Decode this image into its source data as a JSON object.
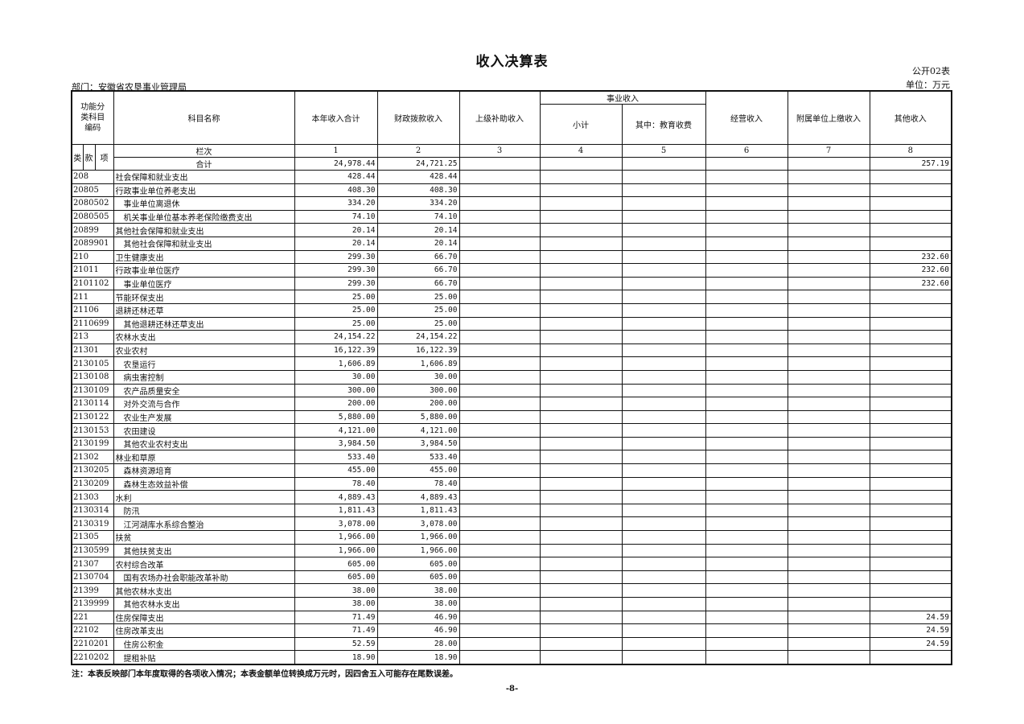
{
  "title": "收入决算表",
  "form_no": "公开02表",
  "unit": "单位：万元",
  "department": "部门：安徽省农垦事业管理局",
  "headers": {
    "code": "功能分类科目编码",
    "lei": "类",
    "kuan": "款",
    "xiang": "项",
    "name": "科目名称",
    "c1": "本年收入合计",
    "c2": "财政拨款收入",
    "c3": "上级补助收入",
    "shiye": "事业收入",
    "c4": "小计",
    "c5": "其中：教育收费",
    "c6": "经营收入",
    "c7": "附属单位上缴收入",
    "c8": "其他收入",
    "lanci": "栏次",
    "nums": [
      "1",
      "2",
      "3",
      "4",
      "5",
      "6",
      "7",
      "8"
    ]
  },
  "total": {
    "label": "合计",
    "c1": "24,978.44",
    "c2": "24,721.25",
    "c8": "257.19"
  },
  "rows": [
    {
      "code": "208",
      "name": "社会保障和就业支出",
      "level": 1,
      "c1": "428.44",
      "c2": "428.44",
      "c8": ""
    },
    {
      "code": "20805",
      "name": "行政事业单位养老支出",
      "level": 1,
      "c1": "408.30",
      "c2": "408.30",
      "c8": ""
    },
    {
      "code": "2080502",
      "name": "事业单位离退休",
      "level": 2,
      "c1": "334.20",
      "c2": "334.20",
      "c8": ""
    },
    {
      "code": "2080505",
      "name": "机关事业单位基本养老保险缴费支出",
      "level": 2,
      "c1": "74.10",
      "c2": "74.10",
      "c8": ""
    },
    {
      "code": "20899",
      "name": "其他社会保障和就业支出",
      "level": 1,
      "c1": "20.14",
      "c2": "20.14",
      "c8": ""
    },
    {
      "code": "2089901",
      "name": "其他社会保障和就业支出",
      "level": 2,
      "c1": "20.14",
      "c2": "20.14",
      "c8": ""
    },
    {
      "code": "210",
      "name": "卫生健康支出",
      "level": 1,
      "c1": "299.30",
      "c2": "66.70",
      "c8": "232.60"
    },
    {
      "code": "21011",
      "name": "行政事业单位医疗",
      "level": 1,
      "c1": "299.30",
      "c2": "66.70",
      "c8": "232.60"
    },
    {
      "code": "2101102",
      "name": "事业单位医疗",
      "level": 2,
      "c1": "299.30",
      "c2": "66.70",
      "c8": "232.60"
    },
    {
      "code": "211",
      "name": "节能环保支出",
      "level": 1,
      "c1": "25.00",
      "c2": "25.00",
      "c8": ""
    },
    {
      "code": "21106",
      "name": "退耕还林还草",
      "level": 1,
      "c1": "25.00",
      "c2": "25.00",
      "c8": ""
    },
    {
      "code": "2110699",
      "name": "其他退耕还林还草支出",
      "level": 2,
      "c1": "25.00",
      "c2": "25.00",
      "c8": ""
    },
    {
      "code": "213",
      "name": "农林水支出",
      "level": 1,
      "c1": "24,154.22",
      "c2": "24,154.22",
      "c8": ""
    },
    {
      "code": "21301",
      "name": "农业农村",
      "level": 1,
      "c1": "16,122.39",
      "c2": "16,122.39",
      "c8": ""
    },
    {
      "code": "2130105",
      "name": "农垦运行",
      "level": 2,
      "c1": "1,606.89",
      "c2": "1,606.89",
      "c8": ""
    },
    {
      "code": "2130108",
      "name": "病虫害控制",
      "level": 2,
      "c1": "30.00",
      "c2": "30.00",
      "c8": ""
    },
    {
      "code": "2130109",
      "name": "农产品质量安全",
      "level": 2,
      "c1": "300.00",
      "c2": "300.00",
      "c8": ""
    },
    {
      "code": "2130114",
      "name": "对外交流与合作",
      "level": 2,
      "c1": "200.00",
      "c2": "200.00",
      "c8": ""
    },
    {
      "code": "2130122",
      "name": "农业生产发展",
      "level": 2,
      "c1": "5,880.00",
      "c2": "5,880.00",
      "c8": ""
    },
    {
      "code": "2130153",
      "name": "农田建设",
      "level": 2,
      "c1": "4,121.00",
      "c2": "4,121.00",
      "c8": ""
    },
    {
      "code": "2130199",
      "name": "其他农业农村支出",
      "level": 2,
      "c1": "3,984.50",
      "c2": "3,984.50",
      "c8": ""
    },
    {
      "code": "21302",
      "name": "林业和草原",
      "level": 1,
      "c1": "533.40",
      "c2": "533.40",
      "c8": ""
    },
    {
      "code": "2130205",
      "name": "森林资源培育",
      "level": 2,
      "c1": "455.00",
      "c2": "455.00",
      "c8": ""
    },
    {
      "code": "2130209",
      "name": "森林生态效益补偿",
      "level": 2,
      "c1": "78.40",
      "c2": "78.40",
      "c8": ""
    },
    {
      "code": "21303",
      "name": "水利",
      "level": 1,
      "c1": "4,889.43",
      "c2": "4,889.43",
      "c8": ""
    },
    {
      "code": "2130314",
      "name": "防汛",
      "level": 2,
      "c1": "1,811.43",
      "c2": "1,811.43",
      "c8": ""
    },
    {
      "code": "2130319",
      "name": "江河湖库水系综合整治",
      "level": 2,
      "c1": "3,078.00",
      "c2": "3,078.00",
      "c8": ""
    },
    {
      "code": "21305",
      "name": "扶贫",
      "level": 1,
      "c1": "1,966.00",
      "c2": "1,966.00",
      "c8": ""
    },
    {
      "code": "2130599",
      "name": "其他扶贫支出",
      "level": 2,
      "c1": "1,966.00",
      "c2": "1,966.00",
      "c8": ""
    },
    {
      "code": "21307",
      "name": "农村综合改革",
      "level": 1,
      "c1": "605.00",
      "c2": "605.00",
      "c8": ""
    },
    {
      "code": "2130704",
      "name": "国有农场办社会职能改革补助",
      "level": 2,
      "c1": "605.00",
      "c2": "605.00",
      "c8": ""
    },
    {
      "code": "21399",
      "name": "其他农林水支出",
      "level": 1,
      "c1": "38.00",
      "c2": "38.00",
      "c8": ""
    },
    {
      "code": "2139999",
      "name": "其他农林水支出",
      "level": 2,
      "c1": "38.00",
      "c2": "38.00",
      "c8": ""
    },
    {
      "code": "221",
      "name": "住房保障支出",
      "level": 1,
      "c1": "71.49",
      "c2": "46.90",
      "c8": "24.59"
    },
    {
      "code": "22102",
      "name": "住房改革支出",
      "level": 1,
      "c1": "71.49",
      "c2": "46.90",
      "c8": "24.59"
    },
    {
      "code": "2210201",
      "name": "住房公积金",
      "level": 2,
      "c1": "52.59",
      "c2": "28.00",
      "c8": "24.59"
    },
    {
      "code": "2210202",
      "name": "提租补贴",
      "level": 2,
      "c1": "18.90",
      "c2": "18.90",
      "c8": ""
    }
  ],
  "note": "注：本表反映部门本年度取得的各项收入情况；本表金额单位转换成万元时，因四舍五入可能存在尾数误差。",
  "page_number": "-8-"
}
